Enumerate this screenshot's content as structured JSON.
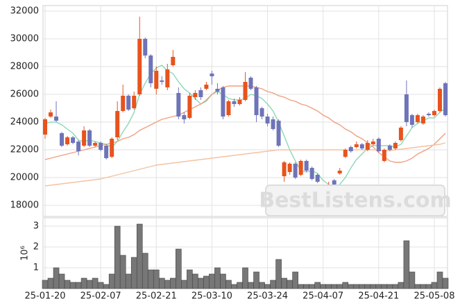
{
  "chart_data": [
    {
      "type": "candlestick",
      "categories": [
        "25-01-20",
        null,
        null,
        null,
        null,
        null,
        null,
        null,
        null,
        null,
        "25-02-07",
        null,
        null,
        null,
        null,
        null,
        null,
        null,
        null,
        null,
        "25-02-21",
        null,
        null,
        null,
        null,
        null,
        null,
        null,
        null,
        null,
        "25-03-10",
        null,
        null,
        null,
        null,
        null,
        null,
        null,
        null,
        null,
        "25-03-24",
        null,
        null,
        null,
        null,
        null,
        null,
        null,
        null,
        null,
        "25-04-07",
        null,
        null,
        null,
        null,
        null,
        null,
        null,
        null,
        null,
        "25-04-21",
        null,
        null,
        null,
        null,
        null,
        null,
        null,
        null,
        null,
        "25-05-08",
        null,
        null
      ],
      "open": [
        23100,
        24400,
        24400,
        23200,
        22400,
        22900,
        22600,
        22300,
        23400,
        22300,
        22500,
        22300,
        21500,
        22900,
        24800,
        25900,
        25000,
        26000,
        30000,
        28800,
        26400,
        27000,
        26500,
        28100,
        26100,
        24500,
        24300,
        25800,
        26300,
        26400,
        27500,
        26400,
        26500,
        24500,
        25500,
        25300,
        25600,
        27200,
        26500,
        25000,
        24400,
        24200,
        24100,
        20100,
        20400,
        21000,
        20200,
        21200,
        20700,
        20200,
        19400,
        19200,
        19800,
        20300,
        21500,
        22200,
        22200,
        22400,
        22000,
        22400,
        22800,
        21200,
        22300,
        22100,
        22700,
        26000,
        24500,
        24000,
        23900,
        24600,
        24500,
        24800,
        26800
      ],
      "high": [
        24300,
        24900,
        25500,
        23300,
        23000,
        23000,
        22700,
        23700,
        23500,
        22600,
        22600,
        22400,
        22900,
        25500,
        26700,
        26000,
        26200,
        31600,
        30100,
        28900,
        28000,
        27300,
        28200,
        29200,
        26500,
        24700,
        26100,
        26300,
        26500,
        26900,
        27700,
        26800,
        26600,
        25600,
        25700,
        25800,
        27600,
        27300,
        26600,
        25100,
        24600,
        24400,
        24200,
        21200,
        21100,
        21100,
        21300,
        21300,
        20800,
        20300,
        19500,
        19700,
        19900,
        20700,
        22100,
        22300,
        22600,
        22500,
        22700,
        22800,
        22900,
        22100,
        22400,
        22600,
        23700,
        27000,
        24600,
        24600,
        24500,
        24700,
        24900,
        26500,
        26900
      ],
      "low": [
        22800,
        24300,
        24000,
        22200,
        22300,
        22400,
        21600,
        22200,
        22200,
        22200,
        21900,
        21300,
        21400,
        22700,
        24700,
        24800,
        24900,
        25900,
        28600,
        26500,
        26000,
        26700,
        26300,
        28000,
        24200,
        23900,
        24200,
        25600,
        25600,
        26300,
        26700,
        26000,
        24200,
        24400,
        25100,
        25200,
        25500,
        26300,
        24000,
        24200,
        23700,
        23400,
        22200,
        19700,
        20200,
        19900,
        20100,
        20400,
        19800,
        19600,
        18200,
        19000,
        18900,
        20200,
        21400,
        21800,
        22100,
        22000,
        21900,
        22300,
        21800,
        21100,
        21900,
        22000,
        22600,
        23700,
        23600,
        23900,
        23800,
        24400,
        24400,
        24700,
        24400
      ],
      "close": [
        24200,
        24700,
        24100,
        22300,
        22900,
        22500,
        21900,
        23400,
        22300,
        22500,
        22000,
        21400,
        22800,
        24800,
        25900,
        24900,
        25900,
        30000,
        28800,
        26800,
        27700,
        26900,
        27800,
        28700,
        24400,
        24200,
        25900,
        26100,
        25800,
        26700,
        27300,
        26200,
        24400,
        25500,
        25300,
        25600,
        26900,
        26400,
        24500,
        24400,
        23900,
        23500,
        22300,
        21100,
        21000,
        20000,
        21200,
        20500,
        19900,
        19700,
        18300,
        19500,
        19000,
        20500,
        22000,
        21900,
        22400,
        22100,
        22500,
        22600,
        21900,
        22000,
        22000,
        22500,
        23600,
        24000,
        23800,
        24500,
        24400,
        24500,
        24800,
        26400,
        24500
      ],
      "up_color": "#e8531d",
      "down_color": "#6f74b8",
      "series": [
        {
          "color": "#8ad9b6",
          "values": [
            23900,
            24000,
            24000,
            23800,
            23500,
            23200,
            22700,
            22600,
            22700,
            22600,
            22500,
            22400,
            22200,
            22600,
            23300,
            23900,
            24700,
            26000,
            26800,
            27500,
            27900,
            28100,
            27700,
            27500,
            26900,
            26400,
            26100,
            25700,
            25300,
            25500,
            26000,
            26200,
            26000,
            25700,
            25600,
            25600,
            25700,
            26000,
            25900,
            25700,
            25300,
            24800,
            24000,
            23000,
            22000,
            21200,
            20500,
            20400,
            20500,
            20300,
            19800,
            19500,
            19400,
            19500,
            20000,
            20700,
            21300,
            21700,
            22100,
            22300,
            22300,
            22300,
            22300,
            22200,
            22400,
            23000,
            23600,
            23900,
            24100,
            24300,
            24300,
            24700,
            25000
          ]
        },
        {
          "color": "#ef9f7f",
          "values": [
            21300,
            21400,
            21500,
            21600,
            21700,
            21800,
            21900,
            22000,
            22100,
            22200,
            22300,
            22400,
            22500,
            22600,
            22800,
            22900,
            23100,
            23400,
            23600,
            23800,
            24000,
            24200,
            24300,
            24400,
            24500,
            24700,
            24900,
            25100,
            25300,
            25600,
            26000,
            26300,
            26500,
            26600,
            26600,
            26600,
            26600,
            26600,
            26500,
            26400,
            26200,
            26100,
            25900,
            25800,
            25600,
            25500,
            25300,
            25200,
            25000,
            24800,
            24500,
            24300,
            24000,
            23800,
            23500,
            23300,
            23000,
            22800,
            22500,
            22200,
            21800,
            21500,
            21200,
            21100,
            21100,
            21200,
            21400,
            21700,
            21900,
            22100,
            22400,
            22800,
            23200
          ]
        },
        {
          "color": "#f2c2a2",
          "values": [
            19400,
            19450,
            19500,
            19550,
            19600,
            19650,
            19700,
            19750,
            19800,
            19850,
            19900,
            20000,
            20100,
            20200,
            20300,
            20400,
            20500,
            20600,
            20700,
            20800,
            20900,
            20950,
            21000,
            21050,
            21100,
            21150,
            21200,
            21250,
            21300,
            21350,
            21400,
            21450,
            21500,
            21550,
            21600,
            21650,
            21700,
            21750,
            21800,
            21850,
            21900,
            21950,
            22000,
            22000,
            22000,
            22000,
            22000,
            22000,
            22000,
            22000,
            22000,
            22000,
            22000,
            22000,
            22000,
            22000,
            22000,
            22000,
            22000,
            22000,
            22000,
            21950,
            21950,
            22000,
            22050,
            22100,
            22150,
            22200,
            22250,
            22300,
            22350,
            22400,
            22500
          ]
        }
      ],
      "ylim": [
        17200,
        32400
      ],
      "yticks": [
        18000,
        20000,
        22000,
        24000,
        26000,
        28000,
        30000,
        32000
      ],
      "grid": true,
      "watermark": "BestListens.com"
    },
    {
      "type": "bar",
      "values": [
        0.4,
        0.5,
        1.0,
        0.7,
        0.4,
        0.3,
        0.3,
        0.5,
        0.4,
        0.5,
        0.3,
        0.2,
        0.7,
        3.0,
        1.6,
        0.7,
        1.5,
        3.1,
        1.7,
        0.9,
        0.9,
        0.5,
        0.4,
        0.5,
        1.9,
        0.4,
        0.9,
        0.7,
        0.5,
        0.6,
        0.7,
        1.0,
        0.7,
        0.4,
        0.2,
        0.3,
        1.0,
        0.3,
        0.8,
        0.3,
        0.2,
        0.4,
        1.4,
        0.5,
        0.4,
        0.8,
        0.2,
        0.2,
        0.2,
        0.3,
        0.2,
        0.2,
        0.2,
        0.2,
        0.3,
        0.2,
        0.2,
        0.2,
        0.2,
        0.2,
        0.2,
        0.2,
        0.2,
        0.2,
        0.3,
        2.3,
        0.8,
        0.2,
        0.2,
        0.2,
        0.3,
        0.8,
        0.5
      ],
      "color": "#777777",
      "y_label": "10⁶",
      "ylim": [
        0,
        3.4
      ],
      "yticks": [
        1,
        2,
        3
      ],
      "grid": true
    }
  ]
}
